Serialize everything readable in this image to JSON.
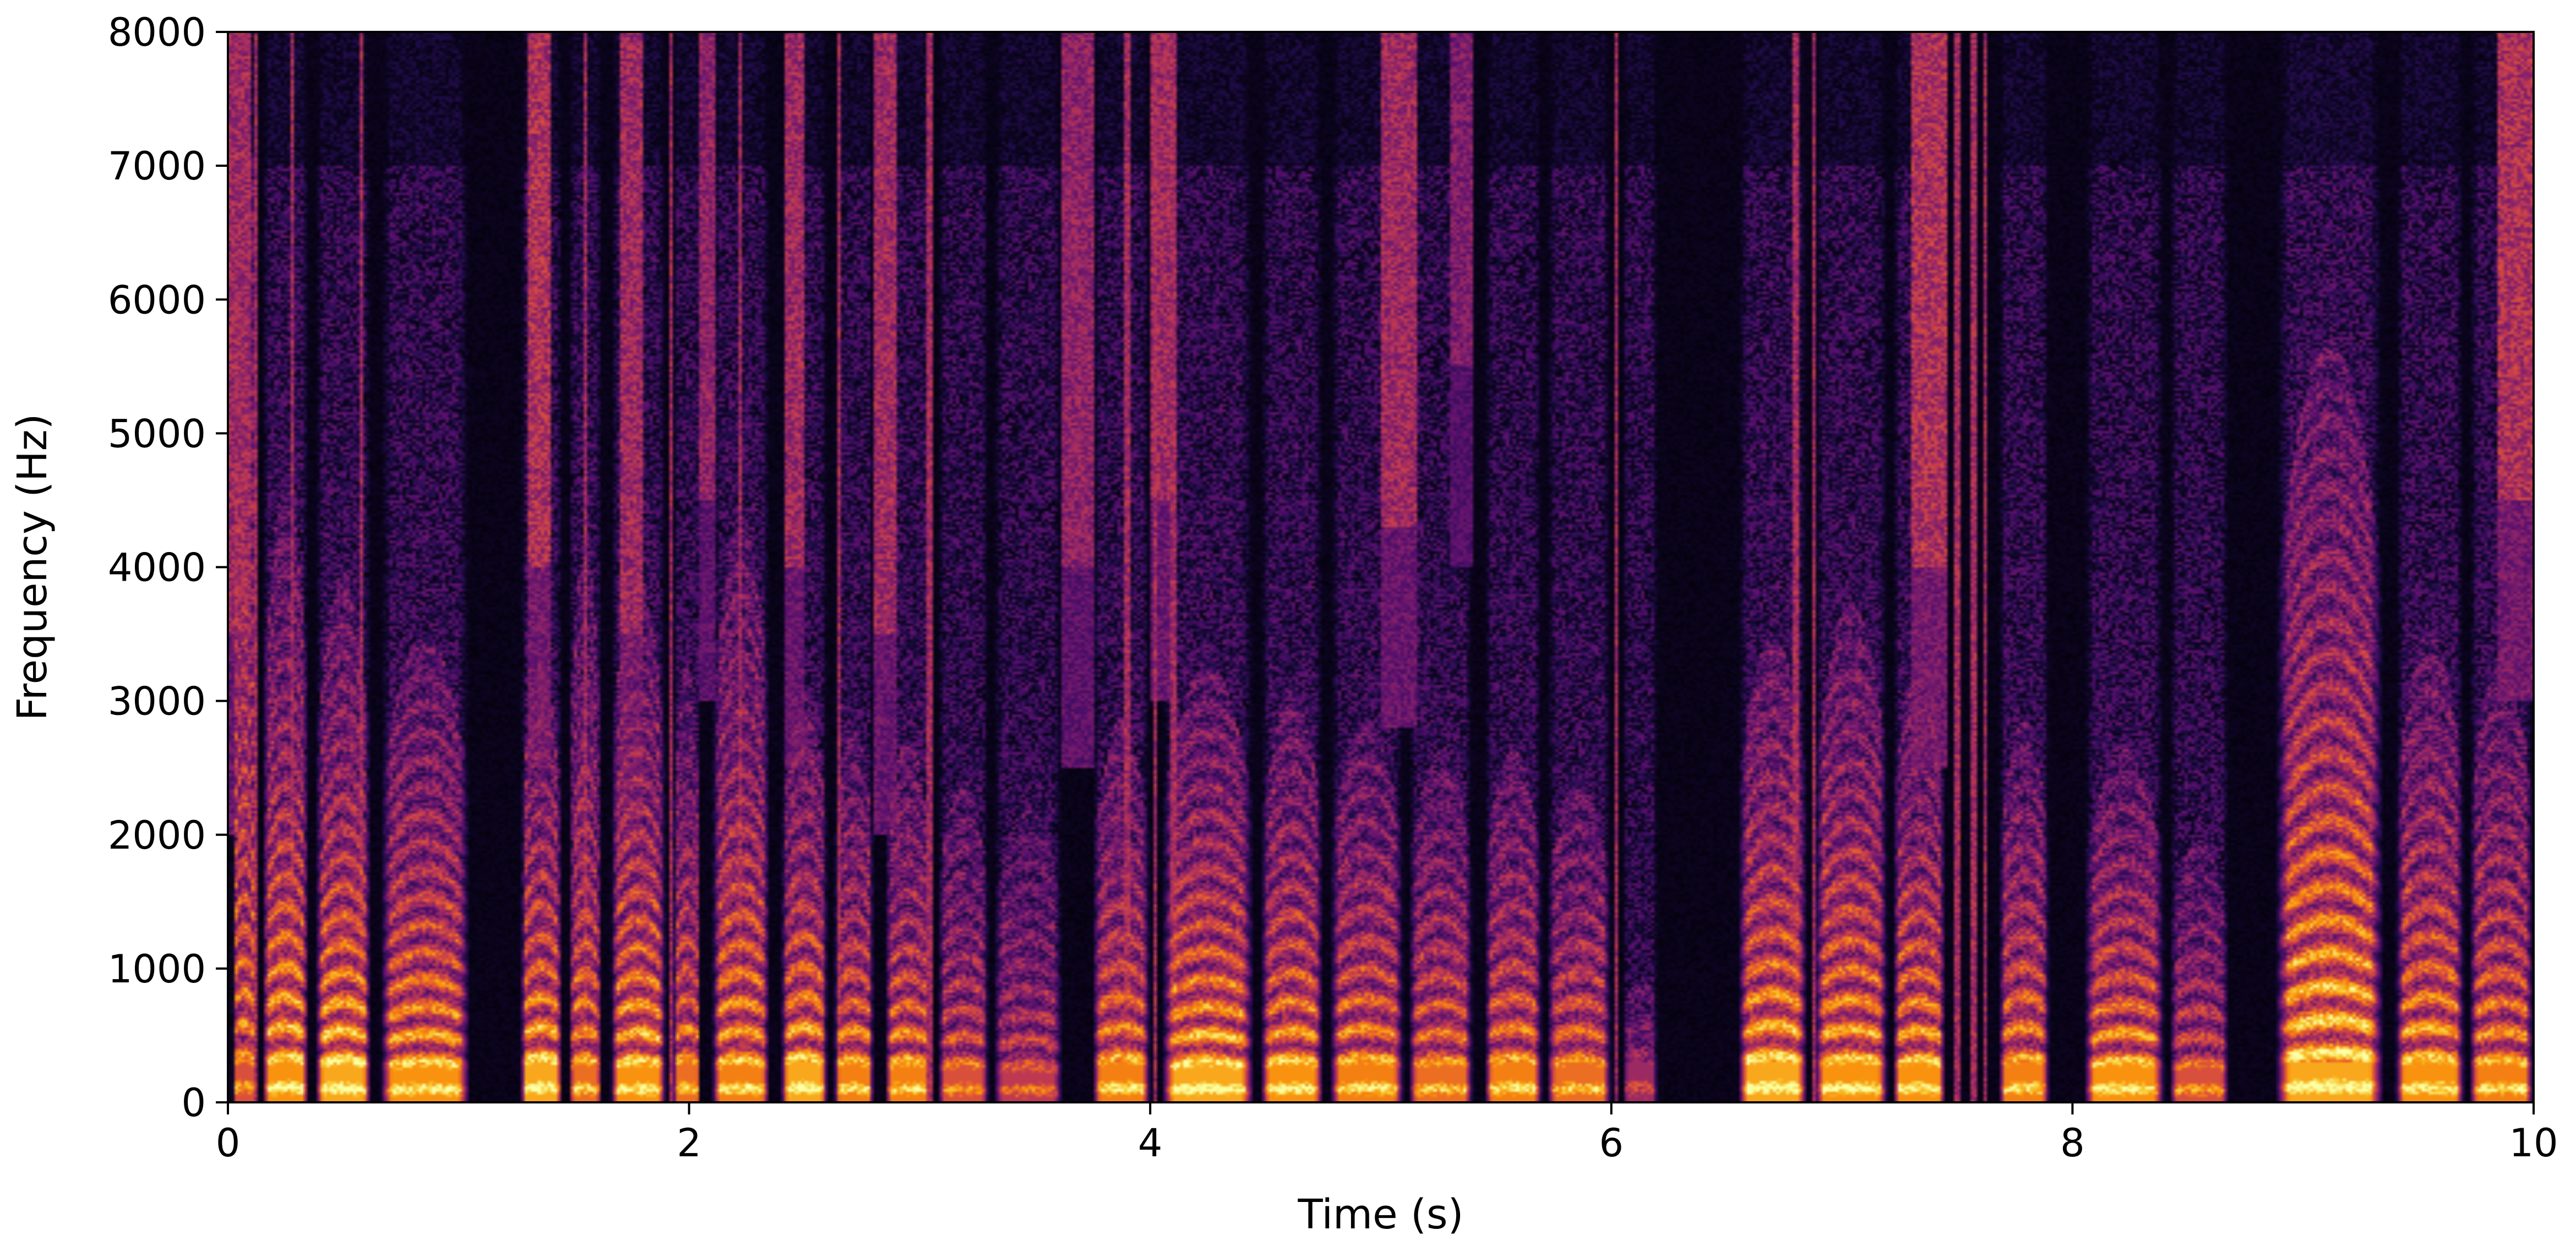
{
  "chart_data": {
    "type": "heatmap",
    "title": "",
    "xlabel": "Time (s)",
    "ylabel": "Frequency (Hz)",
    "xlim": [
      0,
      10
    ],
    "ylim": [
      0,
      8000
    ],
    "x_ticks": [
      0,
      2,
      4,
      6,
      8,
      10
    ],
    "x_tick_labels": [
      "0",
      "2",
      "4",
      "6",
      "8",
      "10"
    ],
    "y_ticks": [
      0,
      1000,
      2000,
      3000,
      4000,
      5000,
      6000,
      7000,
      8000
    ],
    "y_tick_labels": [
      "0",
      "1000",
      "2000",
      "3000",
      "4000",
      "5000",
      "6000",
      "7000",
      "8000"
    ],
    "colormap": "inferno",
    "colorbar": false,
    "grid": false,
    "voiced_segments": [
      {
        "start": 0.02,
        "end": 0.12,
        "f0": 220,
        "top": 8000,
        "level": 0.7
      },
      {
        "start": 0.15,
        "end": 0.35,
        "f0": 210,
        "top": 4200,
        "level": 0.9
      },
      {
        "start": 0.38,
        "end": 0.62,
        "f0": 200,
        "top": 3600,
        "level": 0.95
      },
      {
        "start": 0.66,
        "end": 1.05,
        "f0": 190,
        "top": 3200,
        "level": 0.9
      },
      {
        "start": 1.27,
        "end": 1.45,
        "f0": 210,
        "top": 3000,
        "level": 0.95
      },
      {
        "start": 1.48,
        "end": 1.62,
        "f0": 200,
        "top": 3800,
        "level": 0.8
      },
      {
        "start": 1.66,
        "end": 1.9,
        "f0": 195,
        "top": 3600,
        "level": 0.9
      },
      {
        "start": 1.93,
        "end": 2.05,
        "f0": 205,
        "top": 3000,
        "level": 0.8
      },
      {
        "start": 2.1,
        "end": 2.35,
        "f0": 200,
        "top": 4000,
        "level": 0.85
      },
      {
        "start": 2.4,
        "end": 2.6,
        "f0": 210,
        "top": 2800,
        "level": 0.95
      },
      {
        "start": 2.63,
        "end": 2.8,
        "f0": 200,
        "top": 2600,
        "level": 0.85
      },
      {
        "start": 2.85,
        "end": 3.05,
        "f0": 195,
        "top": 2500,
        "level": 0.85
      },
      {
        "start": 3.08,
        "end": 3.3,
        "f0": 185,
        "top": 2200,
        "level": 0.7
      },
      {
        "start": 3.32,
        "end": 3.62,
        "f0": 175,
        "top": 2000,
        "level": 0.6
      },
      {
        "start": 3.75,
        "end": 4.0,
        "f0": 210,
        "top": 2600,
        "level": 0.85
      },
      {
        "start": 4.05,
        "end": 4.45,
        "f0": 190,
        "top": 3000,
        "level": 0.95
      },
      {
        "start": 4.48,
        "end": 4.75,
        "f0": 200,
        "top": 2800,
        "level": 0.9
      },
      {
        "start": 4.78,
        "end": 5.1,
        "f0": 205,
        "top": 2600,
        "level": 0.85
      },
      {
        "start": 5.12,
        "end": 5.4,
        "f0": 195,
        "top": 2400,
        "level": 0.8
      },
      {
        "start": 5.45,
        "end": 5.7,
        "f0": 210,
        "top": 2400,
        "level": 0.85
      },
      {
        "start": 5.72,
        "end": 6.0,
        "f0": 200,
        "top": 2200,
        "level": 0.8
      },
      {
        "start": 6.05,
        "end": 6.2,
        "f0": 220,
        "top": 900,
        "level": 0.5
      },
      {
        "start": 6.55,
        "end": 6.85,
        "f0": 215,
        "top": 3200,
        "level": 0.95
      },
      {
        "start": 6.88,
        "end": 7.2,
        "f0": 205,
        "top": 3400,
        "level": 0.9
      },
      {
        "start": 7.22,
        "end": 7.45,
        "f0": 200,
        "top": 3000,
        "level": 0.9
      },
      {
        "start": 7.68,
        "end": 7.9,
        "f0": 210,
        "top": 2600,
        "level": 0.85
      },
      {
        "start": 8.05,
        "end": 8.4,
        "f0": 195,
        "top": 2400,
        "level": 0.9
      },
      {
        "start": 8.42,
        "end": 8.68,
        "f0": 185,
        "top": 1800,
        "level": 0.7
      },
      {
        "start": 8.88,
        "end": 9.35,
        "f0": 230,
        "top": 5200,
        "level": 0.95
      },
      {
        "start": 9.4,
        "end": 9.7,
        "f0": 210,
        "top": 3200,
        "level": 0.9
      },
      {
        "start": 9.72,
        "end": 10.0,
        "f0": 200,
        "top": 3000,
        "level": 0.85
      }
    ],
    "fricative_segments": [
      {
        "start": 0.0,
        "end": 0.1,
        "low": 2000,
        "level": 0.55
      },
      {
        "start": 1.3,
        "end": 1.4,
        "low": 2500,
        "level": 0.6
      },
      {
        "start": 1.7,
        "end": 1.8,
        "low": 2000,
        "level": 0.55
      },
      {
        "start": 2.05,
        "end": 2.12,
        "low": 3000,
        "level": 0.5
      },
      {
        "start": 2.42,
        "end": 2.5,
        "low": 2500,
        "level": 0.55
      },
      {
        "start": 2.8,
        "end": 2.9,
        "low": 2000,
        "level": 0.55
      },
      {
        "start": 3.62,
        "end": 3.75,
        "low": 2500,
        "level": 0.5
      },
      {
        "start": 4.0,
        "end": 4.08,
        "low": 3000,
        "level": 0.55
      },
      {
        "start": 5.0,
        "end": 5.15,
        "low": 2800,
        "level": 0.55
      },
      {
        "start": 5.3,
        "end": 5.4,
        "low": 4000,
        "level": 0.45
      },
      {
        "start": 7.3,
        "end": 7.45,
        "low": 2500,
        "level": 0.6
      },
      {
        "start": 9.85,
        "end": 10.0,
        "low": 3000,
        "level": 0.6
      }
    ],
    "transient_lines": [
      0.12,
      0.28,
      0.58,
      1.55,
      1.92,
      2.22,
      2.65,
      3.04,
      3.9,
      4.02,
      4.1,
      6.02,
      6.8,
      6.88,
      7.5,
      7.57,
      7.62
    ]
  }
}
